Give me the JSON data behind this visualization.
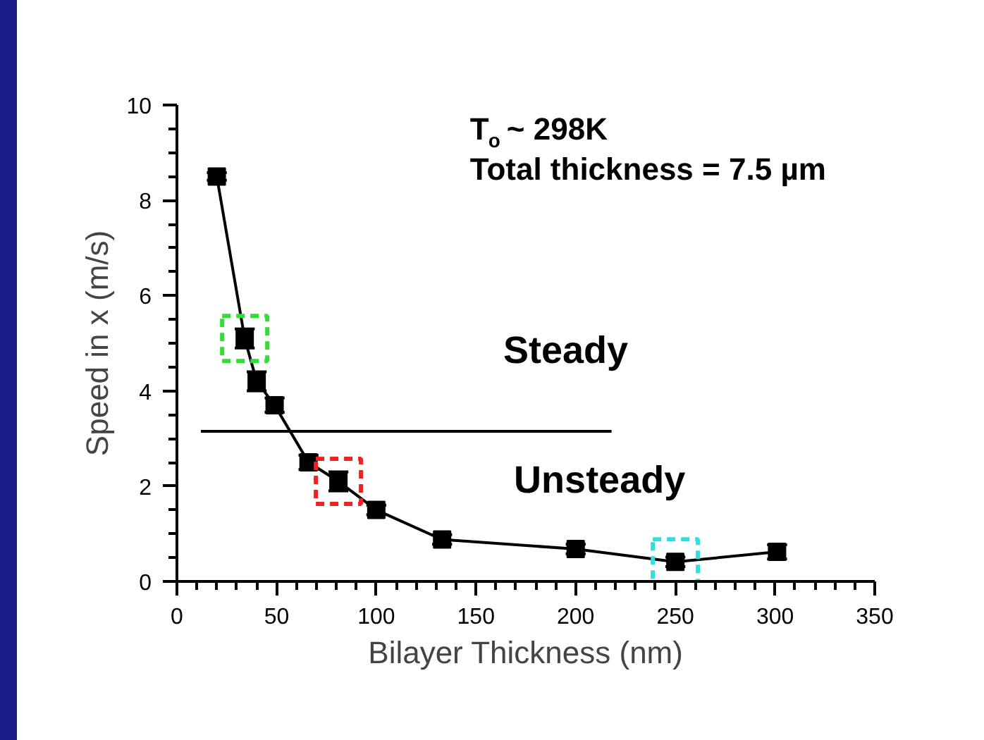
{
  "chart_data": {
    "type": "line",
    "xlabel": "Bilayer Thickness (nm)",
    "ylabel": "Speed in x (m/s)",
    "xlim": [
      0,
      350
    ],
    "ylim": [
      0,
      10
    ],
    "xticks": [
      0,
      50,
      100,
      150,
      200,
      250,
      300,
      350
    ],
    "yticks": [
      0,
      2,
      4,
      6,
      8,
      10
    ],
    "grid": false,
    "marker": "square",
    "line_style": "solid",
    "series": [
      {
        "color": "#000000",
        "x": [
          20,
          34,
          40,
          49,
          66,
          81,
          100,
          133,
          200,
          250,
          301
        ],
        "values": [
          8.5,
          5.1,
          4.2,
          3.7,
          2.5,
          2.1,
          1.5,
          0.88,
          0.68,
          0.41,
          0.62
        ],
        "errors": [
          0.08,
          0.2,
          0.2,
          0.15,
          0.15,
          0.2,
          0.1,
          0.1,
          0.1,
          0.1,
          0.15
        ]
      },
      {
        "type": "line",
        "color": "#000000",
        "marker": "none",
        "x": [
          12,
          218
        ],
        "values": [
          3.15,
          3.15
        ]
      },
      {
        "type": "scatter",
        "marker": "square",
        "line_style": "dashed",
        "colors": [
          "#33dd33",
          "#ee2222",
          "#33dddd"
        ],
        "x": [
          34,
          81,
          250
        ],
        "values": [
          5.1,
          2.1,
          0.41
        ]
      }
    ],
    "annotations": [
      "T$_{o}$ ~ 298K",
      "Total thickness = 7.5 µm",
      "Steady",
      "Unsteady"
    ]
  }
}
